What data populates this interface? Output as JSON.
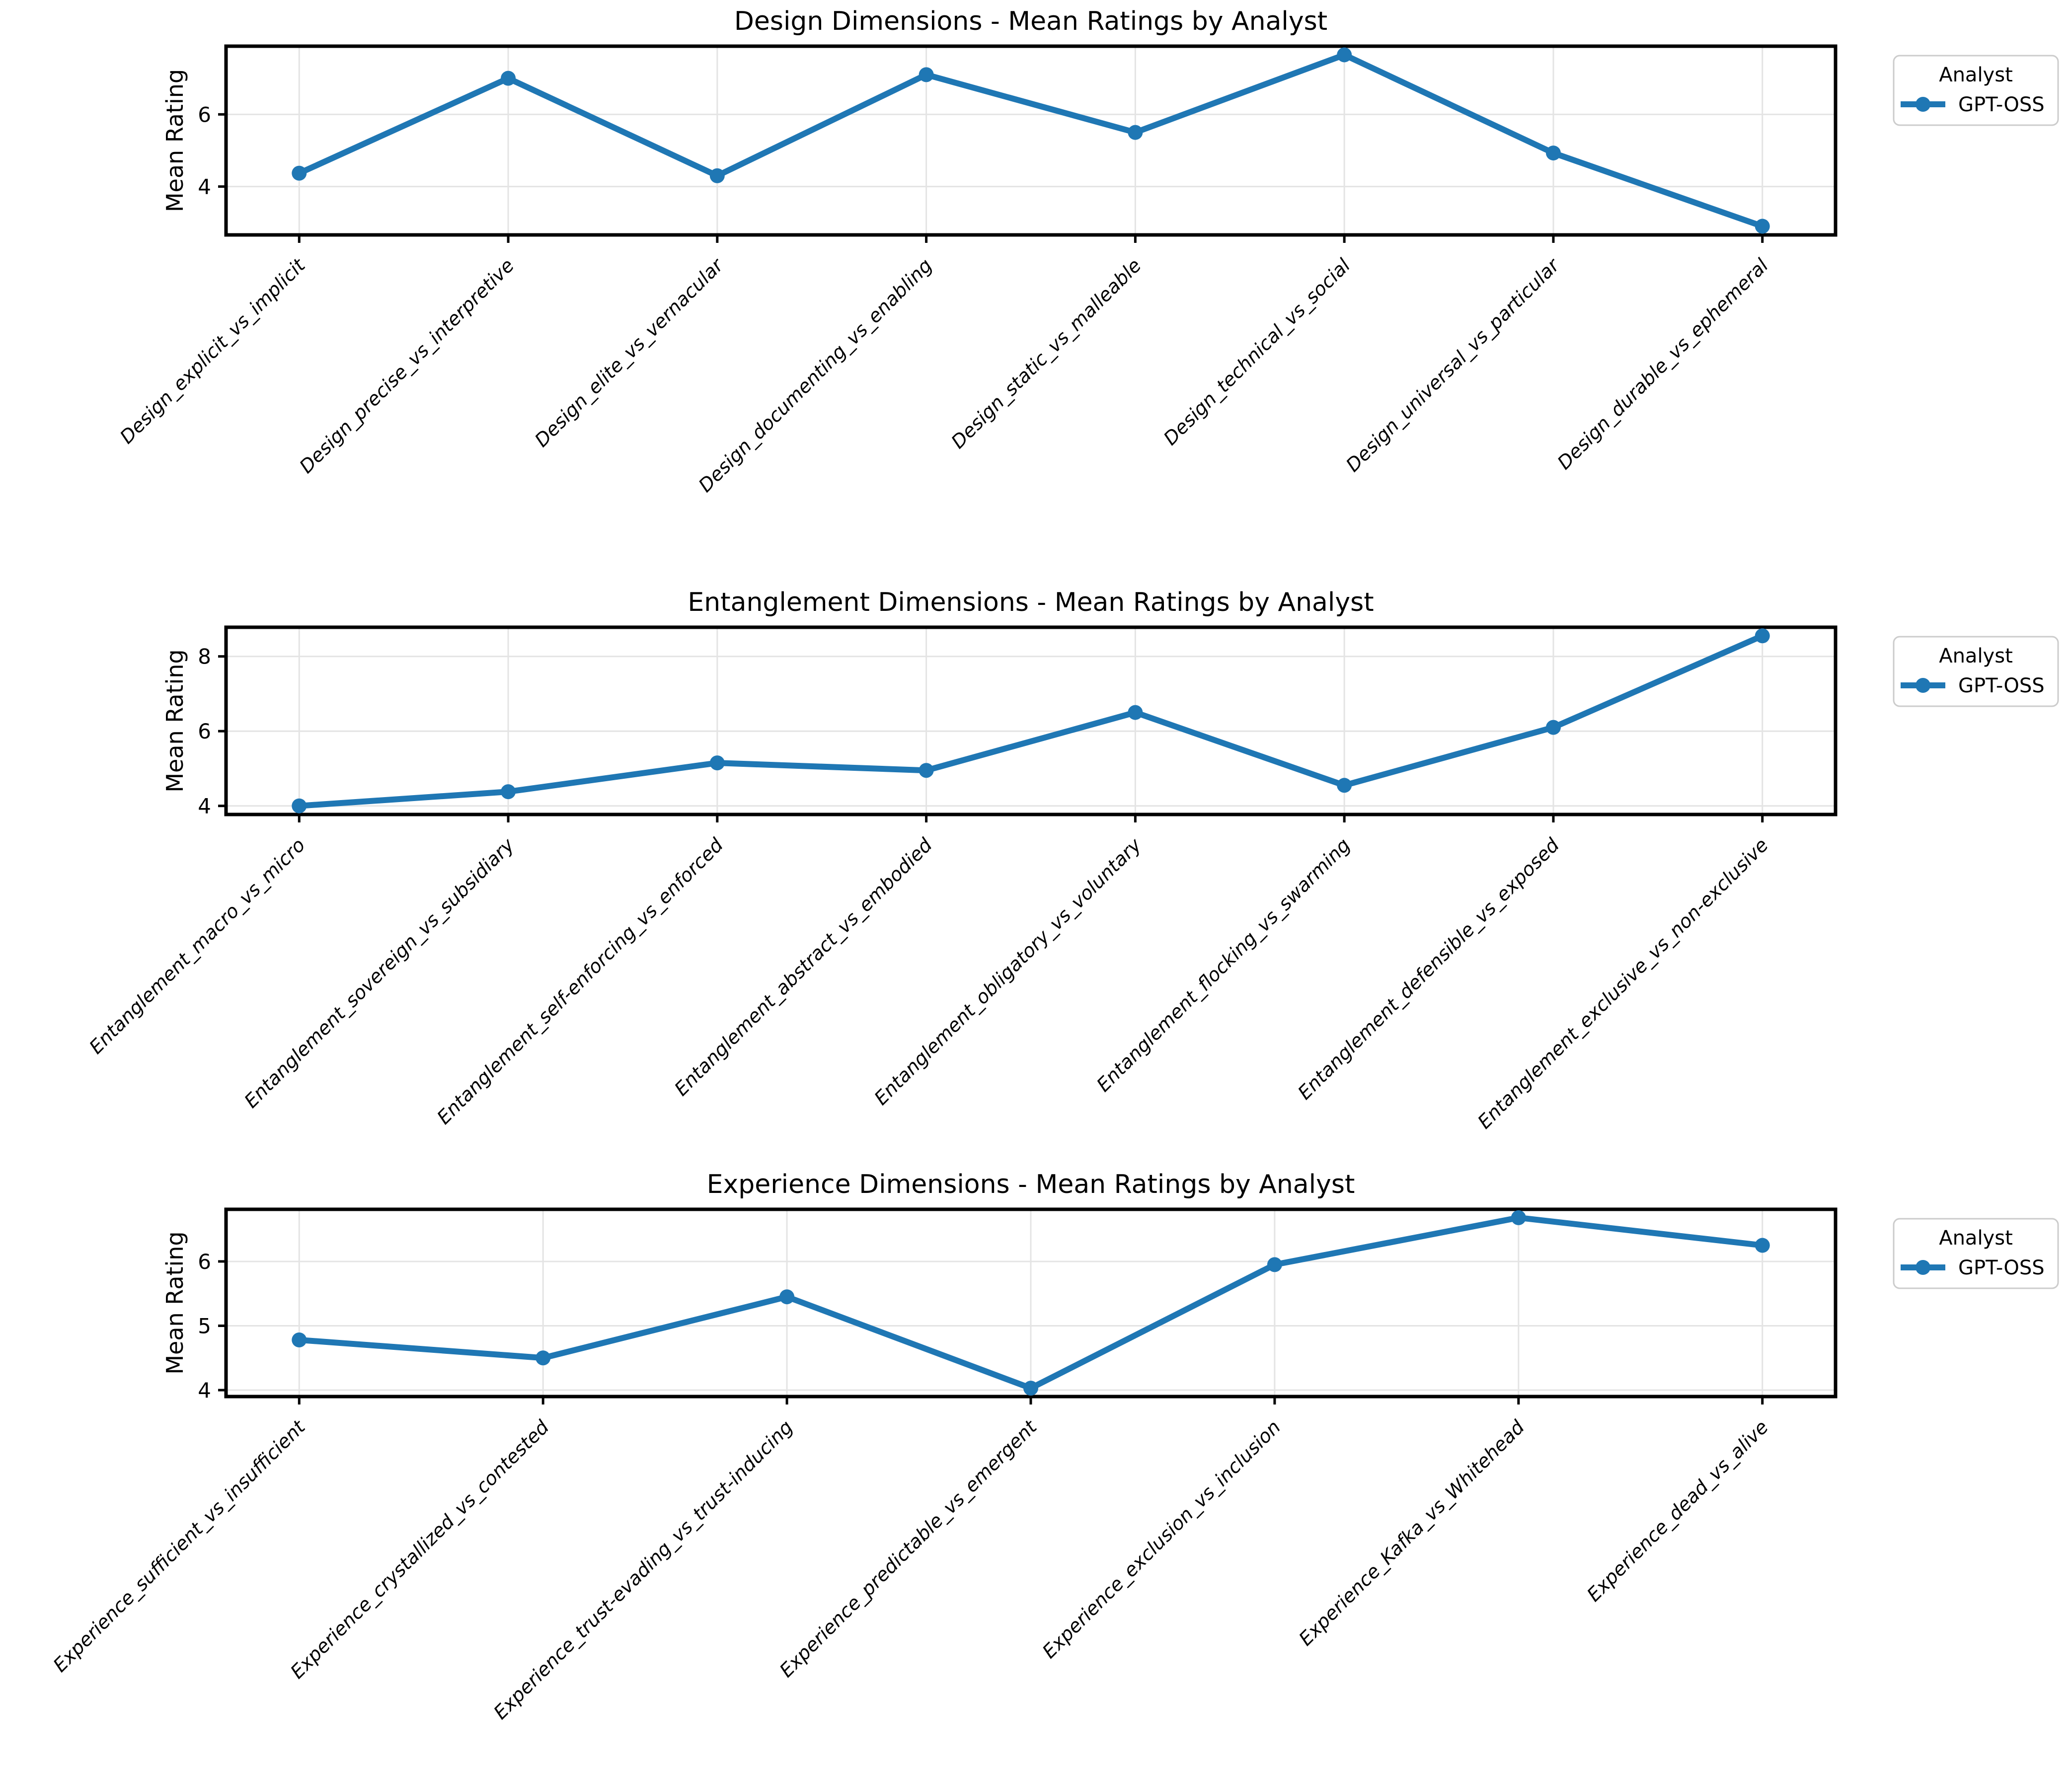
{
  "figure": {
    "background_color": "#ffffff",
    "series_color": "#1f77b4",
    "grid_color": "#e4e4e4",
    "spine_color": "#000000",
    "legend_border_color": "#cccccc",
    "legend_fill_color": "#ffffff"
  },
  "legend": {
    "title": "Analyst",
    "series_label": "GPT-OSS"
  },
  "chart_data": [
    {
      "type": "line",
      "title": "Design Dimensions - Mean Ratings by Analyst",
      "xlabel": "",
      "ylabel": "Mean Rating",
      "legend_title": "Analyst",
      "legend_entries": [
        "GPT-OSS"
      ],
      "legend_position": "outside upper right",
      "grid": true,
      "categories": [
        "Design_explicit_vs_implicit",
        "Design_precise_vs_interpretive",
        "Design_elite_vs_vernacular",
        "Design_documenting_vs_enabling",
        "Design_static_vs_malleable",
        "Design_technical_vs_social",
        "Design_universal_vs_particular",
        "Design_durable_vs_ephemeral"
      ],
      "series": [
        {
          "name": "GPT-OSS",
          "values": [
            4.37,
            7.0,
            4.3,
            7.1,
            5.5,
            7.65,
            4.93,
            2.9
          ]
        }
      ],
      "yticks": [
        4,
        6
      ],
      "ylim": [
        2.66,
        7.89
      ]
    },
    {
      "type": "line",
      "title": "Entanglement Dimensions - Mean Ratings by Analyst",
      "xlabel": "",
      "ylabel": "Mean Rating",
      "legend_title": "Analyst",
      "legend_entries": [
        "GPT-OSS"
      ],
      "legend_position": "outside upper right",
      "grid": true,
      "categories": [
        "Entanglement_macro_vs_micro",
        "Entanglement_sovereign_vs_subsidiary",
        "Entanglement_self-enforcing_vs_enforced",
        "Entanglement_abstract_vs_embodied",
        "Entanglement_obligatory_vs_voluntary",
        "Entanglement_flocking_vs_swarming",
        "Entanglement_defensible_vs_exposed",
        "Entanglement_exclusive_vs_non-exclusive"
      ],
      "series": [
        {
          "name": "GPT-OSS",
          "values": [
            4.0,
            4.38,
            5.15,
            4.95,
            6.5,
            4.55,
            6.1,
            8.55
          ]
        }
      ],
      "yticks": [
        4,
        6,
        8
      ],
      "ylim": [
        3.77,
        8.78
      ]
    },
    {
      "type": "line",
      "title": "Experience Dimensions - Mean Ratings by Analyst",
      "xlabel": "",
      "ylabel": "Mean Rating",
      "legend_title": "Analyst",
      "legend_entries": [
        "GPT-OSS"
      ],
      "legend_position": "outside upper right",
      "grid": true,
      "categories": [
        "Experience_sufficient_vs_insufficient",
        "Experience_crystallized_vs_contested",
        "Experience_trust-evading_vs_trust-inducing",
        "Experience_predictable_vs_emergent",
        "Experience_exclusion_vs_inclusion",
        "Experience_Kafka_vs_Whitehead",
        "Experience_dead_vs_alive"
      ],
      "series": [
        {
          "name": "GPT-OSS",
          "values": [
            4.78,
            4.5,
            5.45,
            4.03,
            5.95,
            6.68,
            6.25
          ]
        }
      ],
      "yticks": [
        4,
        5,
        6
      ],
      "ylim": [
        3.9,
        6.81
      ]
    }
  ]
}
